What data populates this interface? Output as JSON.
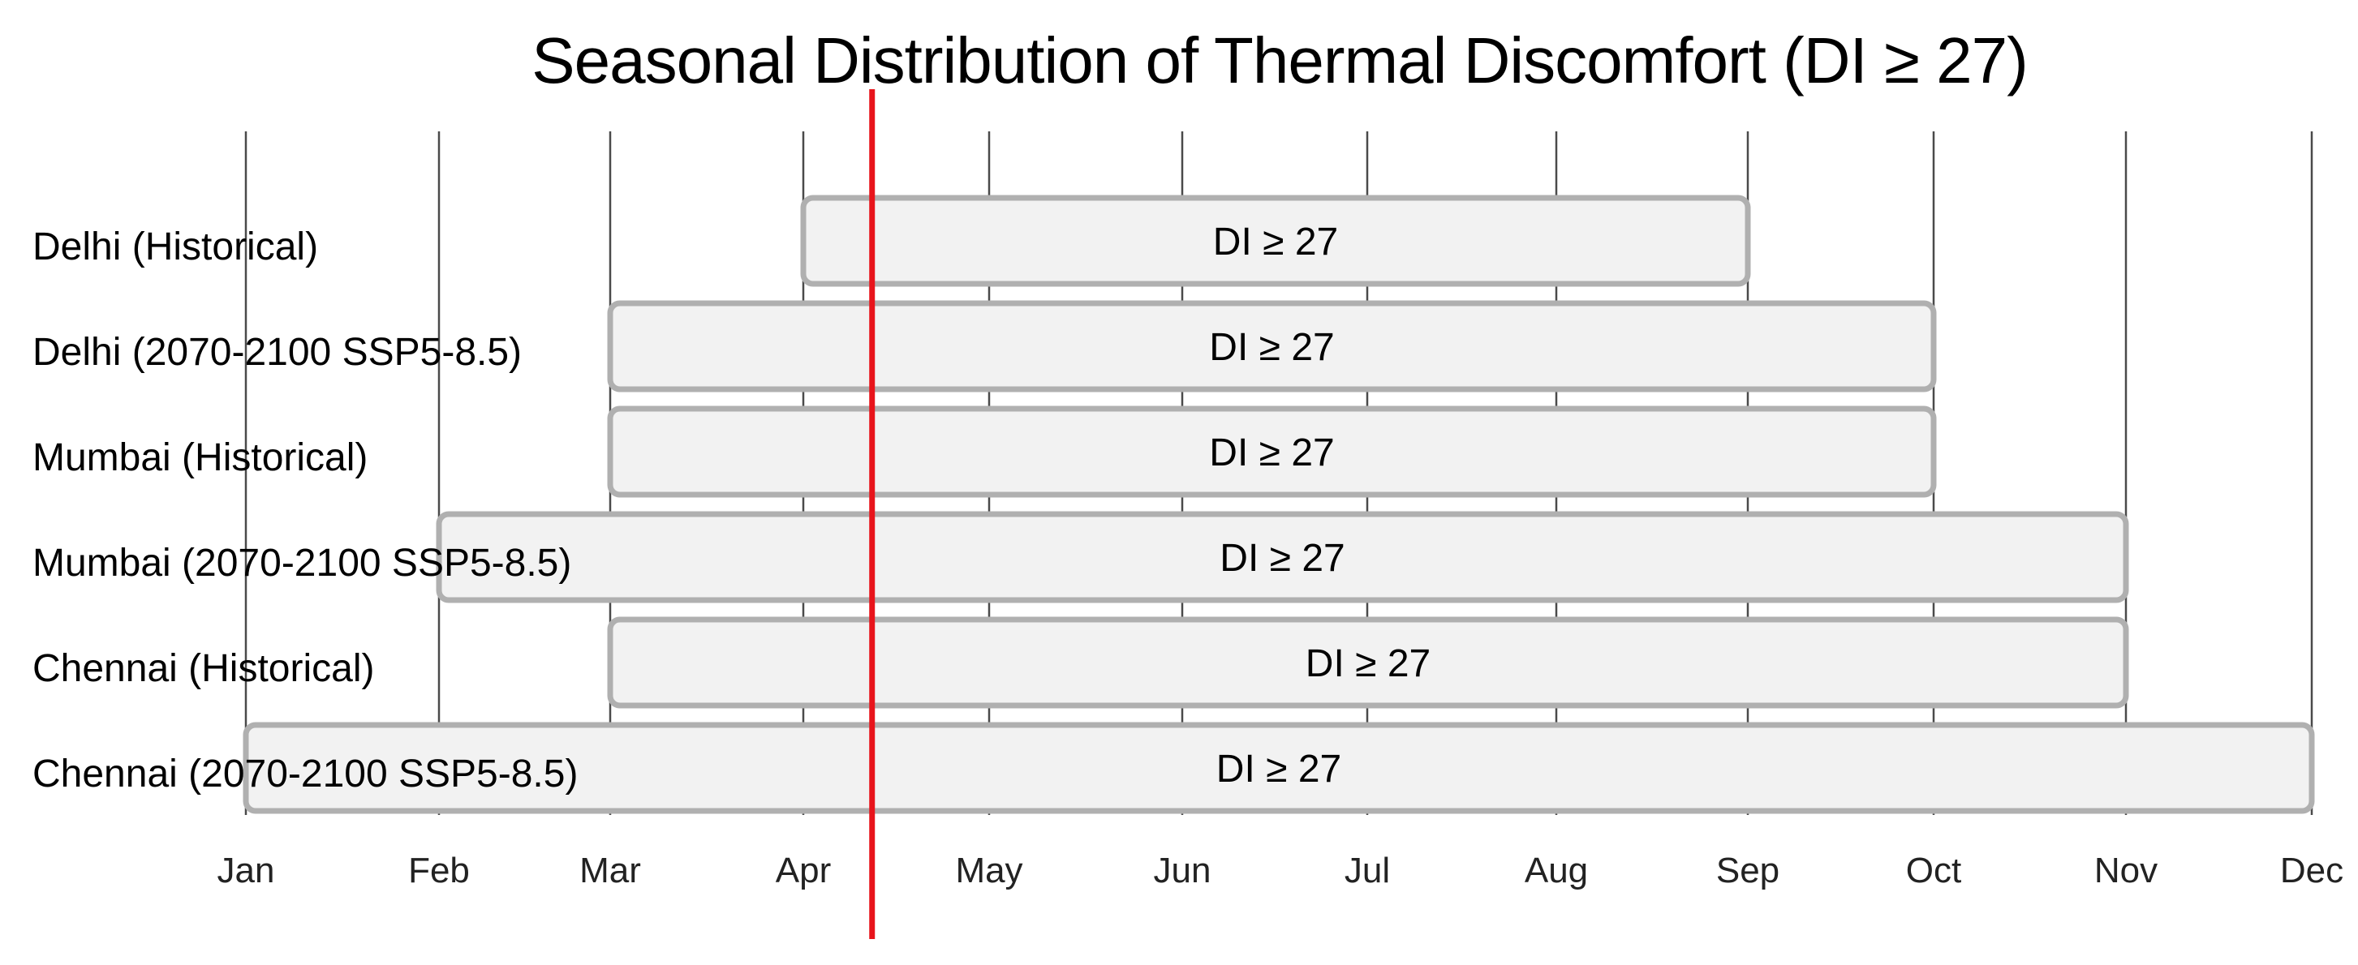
{
  "chart_data": {
    "type": "timeline",
    "title": "Seasonal Distribution of Thermal Discomfort (DI ≥ 27)",
    "x_ticks": [
      "Jan",
      "Feb",
      "Mar",
      "Apr",
      "May",
      "Jun",
      "Jul",
      "Aug",
      "Sep",
      "Oct",
      "Nov",
      "Dec"
    ],
    "rows": [
      {
        "label": "Delhi (Historical)",
        "start": "Apr",
        "end": "Sep",
        "bar_label": "DI ≥ 27"
      },
      {
        "label": "Delhi (2070-2100 SSP5-8.5)",
        "start": "Mar",
        "end": "Oct",
        "bar_label": "DI ≥ 27"
      },
      {
        "label": "Mumbai (Historical)",
        "start": "Mar",
        "end": "Oct",
        "bar_label": "DI ≥ 27"
      },
      {
        "label": "Mumbai (2070-2100 SSP5-8.5)",
        "start": "Feb",
        "end": "Nov",
        "bar_label": "DI ≥ 27"
      },
      {
        "label": "Chennai (Historical)",
        "start": "Mar",
        "end": "Nov",
        "bar_label": "DI ≥ 27"
      },
      {
        "label": "Chennai (2070-2100 SSP5-8.5)",
        "start": "Jan",
        "end": "Dec",
        "bar_label": "DI ≥ 27"
      }
    ],
    "reference_line": {
      "month": 3.37,
      "color": "#e8141b"
    },
    "grid": true,
    "legend": "none",
    "colors": {
      "bar_fill": "#f2f2f2",
      "bar_border": "#b0b0b0",
      "gridline": "#4a4a4a"
    }
  }
}
